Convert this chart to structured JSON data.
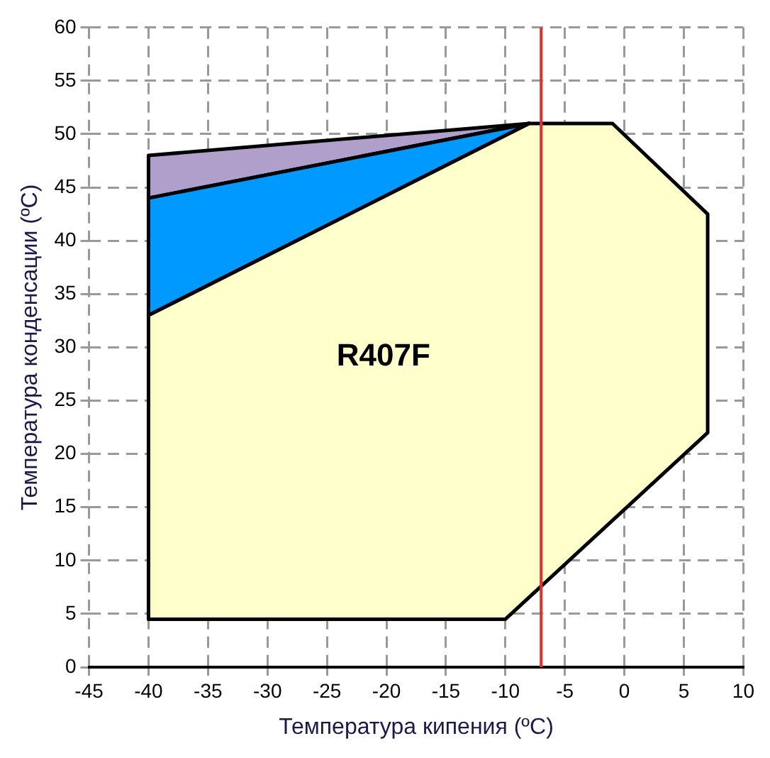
{
  "chart_data": {
    "type": "area",
    "xlabel": "Температура кипения (ºC)",
    "ylabel": "Температура конденсации (ºC)",
    "series": [
      {
        "color": "#ffffcc",
        "x": [
          -40,
          -10,
          7,
          7,
          -1,
          -8,
          -40,
          -40
        ],
        "values": [
          4.5,
          4.5,
          22,
          42.5,
          51,
          51,
          33,
          4.5
        ]
      },
      {
        "color": "#0099ff",
        "x": [
          -40,
          -8,
          -40,
          -40
        ],
        "values": [
          33,
          51,
          44,
          33
        ]
      },
      {
        "color": "#b19fcb",
        "x": [
          -40,
          -8,
          -40,
          -40
        ],
        "values": [
          44,
          51,
          48,
          44
        ]
      }
    ],
    "xlim": [
      -45,
      10
    ],
    "xticks": [
      -45,
      -40,
      -35,
      -30,
      -25,
      -20,
      -15,
      -10,
      -5,
      0,
      5,
      10
    ],
    "ylim": [
      0,
      60
    ],
    "yticks": [
      0,
      5,
      10,
      15,
      20,
      25,
      30,
      35,
      40,
      45,
      50,
      55,
      60
    ],
    "ref_lines": [
      {
        "axis": "x",
        "value": -7,
        "color": "#e03030"
      }
    ],
    "annotations": [
      "R407F"
    ],
    "grid": true,
    "legend": false,
    "marker": "none",
    "line_style": "solid"
  }
}
